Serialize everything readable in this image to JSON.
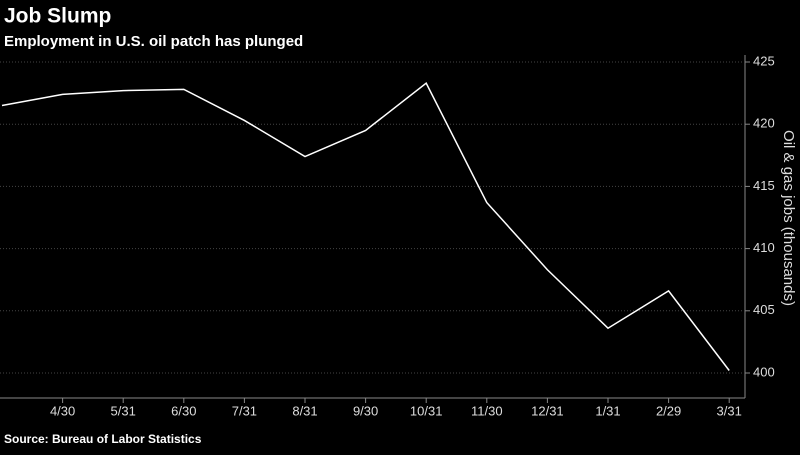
{
  "chart_data": {
    "type": "line",
    "title": "Job Slump",
    "subtitle": "Employment in U.S. oil patch has plunged",
    "y_axis_label": "Oil & gas jobs (thousands)",
    "source": "Source: Bureau of Labor Statistics",
    "categories": [
      null,
      "4/30",
      "5/31",
      "6/30",
      "7/31",
      "8/31",
      "9/30",
      "10/31",
      "11/30",
      "12/31",
      "1/31",
      "2/29",
      "3/31"
    ],
    "values": [
      421.5,
      422.4,
      422.7,
      422.8,
      420.3,
      417.4,
      419.5,
      423.3,
      413.7,
      408.3,
      403.6,
      406.6,
      400.2
    ],
    "color": "#ffffff",
    "ylim": [
      400,
      425
    ],
    "yticks": [
      400,
      405,
      410,
      415,
      420,
      425
    ],
    "grid": true
  }
}
